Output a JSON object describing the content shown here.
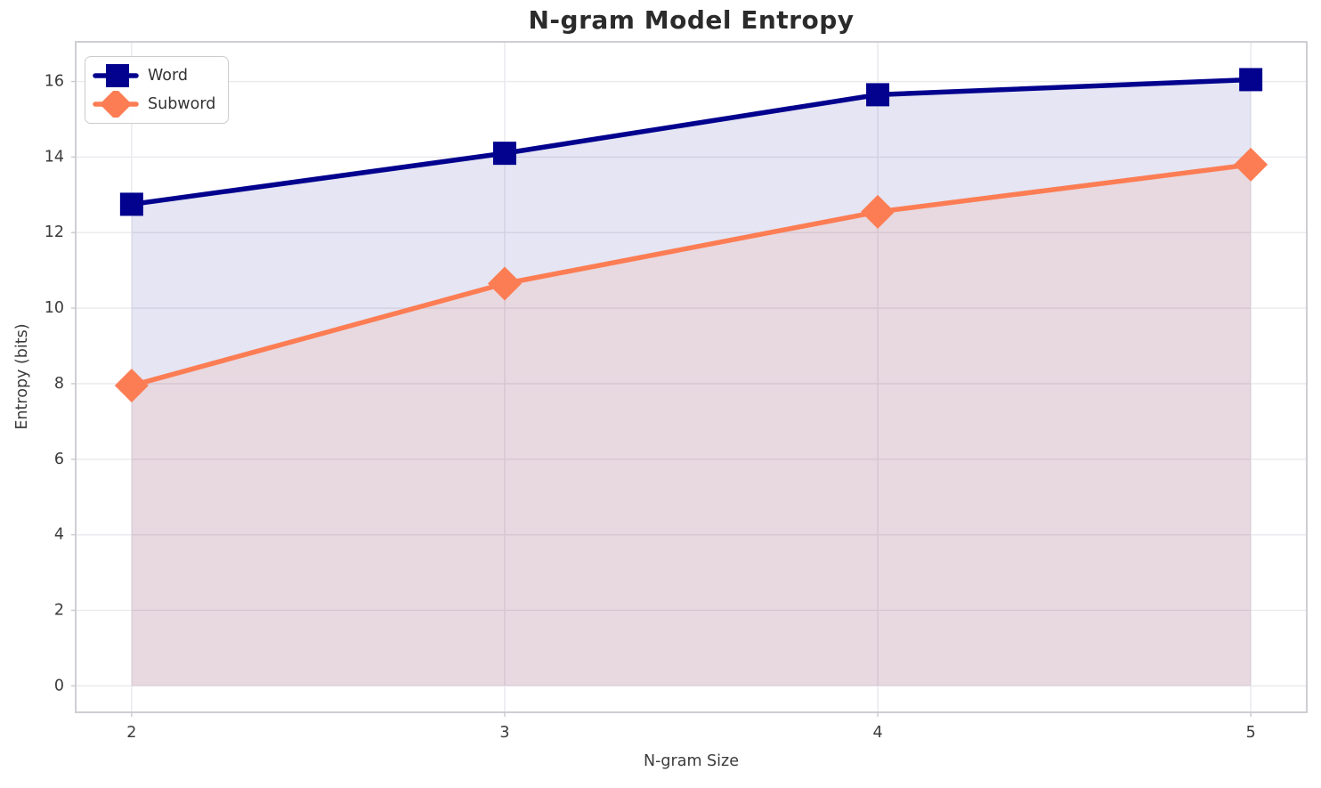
{
  "chart_data": {
    "type": "area",
    "title": "N-gram Model Entropy",
    "xlabel": "N-gram Size",
    "ylabel": "Entropy (bits)",
    "x": [
      2,
      3,
      4,
      5
    ],
    "series": [
      {
        "name": "Word",
        "values": [
          12.75,
          14.1,
          15.65,
          16.05
        ],
        "color": "#02028E",
        "marker": "square",
        "fill_opacity": 0.1
      },
      {
        "name": "Subword",
        "values": [
          7.95,
          10.65,
          12.55,
          13.8
        ],
        "color": "#FC7D54",
        "marker": "diamond",
        "fill_opacity": 0.12
      }
    ],
    "fill_baseline": 0,
    "x_ticks": [
      "2",
      "3",
      "4",
      "5"
    ],
    "x_tick_values": [
      2,
      3,
      4,
      5
    ],
    "y_ticks": [
      "0",
      "2",
      "4",
      "6",
      "8",
      "10",
      "12",
      "14",
      "16"
    ],
    "y_tick_values": [
      0,
      2,
      4,
      6,
      8,
      10,
      12,
      14,
      16
    ],
    "xlim": [
      1.85,
      5.15
    ],
    "ylim": [
      -0.7,
      17.05
    ],
    "grid": true,
    "legend": {
      "position": "upper left",
      "labels": [
        "Word",
        "Subword"
      ]
    },
    "style": {
      "background": "#ffffff",
      "grid_color": "#e9e9ee",
      "spine_color": "#c9c9cf",
      "tick_color": "#c9c9cf",
      "tick_label_color": "#3b3b3b",
      "title_color": "#2b2b2b",
      "legend_text_color": "#333333"
    }
  }
}
